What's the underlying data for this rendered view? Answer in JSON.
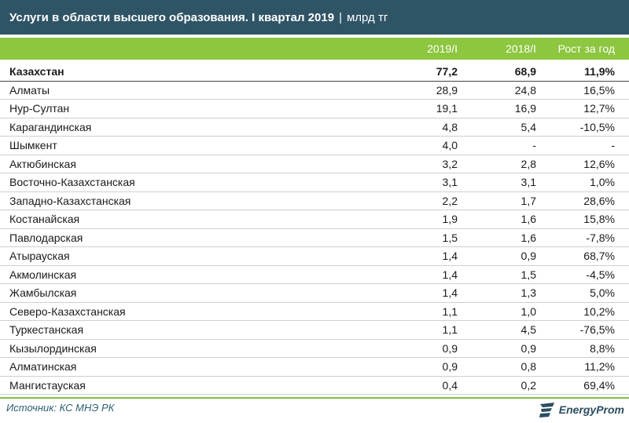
{
  "title": {
    "main": "Услуги в области высшего образования. I квартал 2019",
    "separator": "|",
    "unit": "млрд тг"
  },
  "columns": {
    "col2019": "2019/I",
    "col2018": "2018/I",
    "growth": "Рост за год"
  },
  "rows": [
    {
      "name": "Казахстан",
      "v2019": "77,2",
      "v2018": "68,9",
      "growth": "11,9%"
    },
    {
      "name": "Алматы",
      "v2019": "28,9",
      "v2018": "24,8",
      "growth": "16,5%"
    },
    {
      "name": "Нур-Султан",
      "v2019": "19,1",
      "v2018": "16,9",
      "growth": "12,7%"
    },
    {
      "name": "Карагандинская",
      "v2019": "4,8",
      "v2018": "5,4",
      "growth": "-10,5%"
    },
    {
      "name": "Шымкент",
      "v2019": "4,0",
      "v2018": "-",
      "growth": "-"
    },
    {
      "name": "Актюбинская",
      "v2019": "3,2",
      "v2018": "2,8",
      "growth": "12,6%"
    },
    {
      "name": "Восточно-Казахстанская",
      "v2019": "3,1",
      "v2018": "3,1",
      "growth": "1,0%"
    },
    {
      "name": "Западно-Казахстанская",
      "v2019": "2,2",
      "v2018": "1,7",
      "growth": "28,6%"
    },
    {
      "name": "Костанайская",
      "v2019": "1,9",
      "v2018": "1,6",
      "growth": "15,8%"
    },
    {
      "name": "Павлодарская",
      "v2019": "1,5",
      "v2018": "1,6",
      "growth": "-7,8%"
    },
    {
      "name": "Атырауская",
      "v2019": "1,4",
      "v2018": "0,9",
      "growth": "68,7%"
    },
    {
      "name": "Акмолинская",
      "v2019": "1,4",
      "v2018": "1,5",
      "growth": "-4,5%"
    },
    {
      "name": "Жамбылская",
      "v2019": "1,4",
      "v2018": "1,3",
      "growth": "5,0%"
    },
    {
      "name": "Северо-Казахстанская",
      "v2019": "1,1",
      "v2018": "1,0",
      "growth": "10,2%"
    },
    {
      "name": "Туркестанская",
      "v2019": "1,1",
      "v2018": "4,5",
      "growth": "-76,5%"
    },
    {
      "name": "Кызылординская",
      "v2019": "0,9",
      "v2018": "0,9",
      "growth": "8,8%"
    },
    {
      "name": "Алматинская",
      "v2019": "0,9",
      "v2018": "0,8",
      "growth": "11,2%"
    },
    {
      "name": "Мангистауская",
      "v2019": "0,4",
      "v2018": "0,2",
      "growth": "69,4%"
    }
  ],
  "footer": {
    "source": "Источник: КС МНЭ РК",
    "logo_text": "EnergyProm",
    "logo_icon": "energyprom-logo-icon"
  },
  "colors": {
    "title_bg": "#2f5466",
    "header_bg": "#8dc63f",
    "accent_green": "#7bbf43"
  }
}
